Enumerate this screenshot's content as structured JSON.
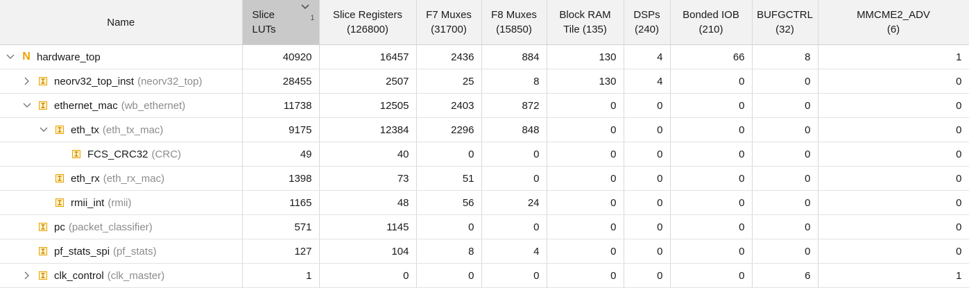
{
  "headers": [
    {
      "label_line1": "Name",
      "label_line2": ""
    },
    {
      "label_line1": "Slice",
      "label_line2": "LUTs",
      "sort_index": "1"
    },
    {
      "label_line1": "Slice Registers",
      "label_line2": "(126800)"
    },
    {
      "label_line1": "F7 Muxes",
      "label_line2": "(31700)"
    },
    {
      "label_line1": "F8 Muxes",
      "label_line2": "(15850)"
    },
    {
      "label_line1": "Block RAM",
      "label_line2": "Tile (135)"
    },
    {
      "label_line1": "DSPs",
      "label_line2": "(240)"
    },
    {
      "label_line1": "Bonded IOB",
      "label_line2": "(210)"
    },
    {
      "label_line1": "BUFGCTRL",
      "label_line2": "(32)"
    },
    {
      "label_line1": "MMCME2_ADV",
      "label_line2": "(6)"
    }
  ],
  "rows": [
    {
      "instance": "hardware_top",
      "module": "",
      "level": 0,
      "expand": "expanded",
      "icon": "netlist-icon",
      "values": [
        "40920",
        "16457",
        "2436",
        "884",
        "130",
        "4",
        "66",
        "8",
        "1"
      ]
    },
    {
      "instance": "neorv32_top_inst",
      "module": "(neorv32_top)",
      "level": 1,
      "expand": "collapsed",
      "icon": "hierarchy-cell-icon",
      "values": [
        "28455",
        "2507",
        "25",
        "8",
        "130",
        "4",
        "0",
        "0",
        "0"
      ]
    },
    {
      "instance": "ethernet_mac",
      "module": "(wb_ethernet)",
      "level": 1,
      "expand": "expanded",
      "icon": "hierarchy-cell-icon",
      "values": [
        "11738",
        "12505",
        "2403",
        "872",
        "0",
        "0",
        "0",
        "0",
        "0"
      ]
    },
    {
      "instance": "eth_tx",
      "module": "(eth_tx_mac)",
      "level": 2,
      "expand": "expanded",
      "icon": "hierarchy-cell-icon",
      "values": [
        "9175",
        "12384",
        "2296",
        "848",
        "0",
        "0",
        "0",
        "0",
        "0"
      ]
    },
    {
      "instance": "FCS_CRC32",
      "module": "(CRC)",
      "level": 3,
      "expand": "none",
      "icon": "hierarchy-cell-icon",
      "values": [
        "49",
        "40",
        "0",
        "0",
        "0",
        "0",
        "0",
        "0",
        "0"
      ]
    },
    {
      "instance": "eth_rx",
      "module": "(eth_rx_mac)",
      "level": 2,
      "expand": "none",
      "icon": "hierarchy-cell-icon",
      "values": [
        "1398",
        "73",
        "51",
        "0",
        "0",
        "0",
        "0",
        "0",
        "0"
      ]
    },
    {
      "instance": "rmii_int",
      "module": "(rmii)",
      "level": 2,
      "expand": "none",
      "icon": "hierarchy-cell-icon",
      "values": [
        "1165",
        "48",
        "56",
        "24",
        "0",
        "0",
        "0",
        "0",
        "0"
      ]
    },
    {
      "instance": "pc",
      "module": "(packet_classifier)",
      "level": 1,
      "expand": "none",
      "icon": "hierarchy-cell-icon",
      "values": [
        "571",
        "1145",
        "0",
        "0",
        "0",
        "0",
        "0",
        "0",
        "0"
      ]
    },
    {
      "instance": "pf_stats_spi",
      "module": "(pf_stats)",
      "level": 1,
      "expand": "none",
      "icon": "hierarchy-cell-icon",
      "values": [
        "127",
        "104",
        "8",
        "4",
        "0",
        "0",
        "0",
        "0",
        "0"
      ]
    },
    {
      "instance": "clk_control",
      "module": "(clk_master)",
      "level": 1,
      "expand": "collapsed",
      "icon": "hierarchy-cell-icon",
      "values": [
        "1",
        "0",
        "0",
        "0",
        "0",
        "0",
        "0",
        "6",
        "1"
      ]
    }
  ],
  "colors": {
    "sorted_header_bg": "#c9c9c9",
    "header_bg": "#f2f2f2",
    "netlist_icon": "#f0a000",
    "cell_icon": "#e8a400",
    "module_text": "#8c8c8c"
  }
}
